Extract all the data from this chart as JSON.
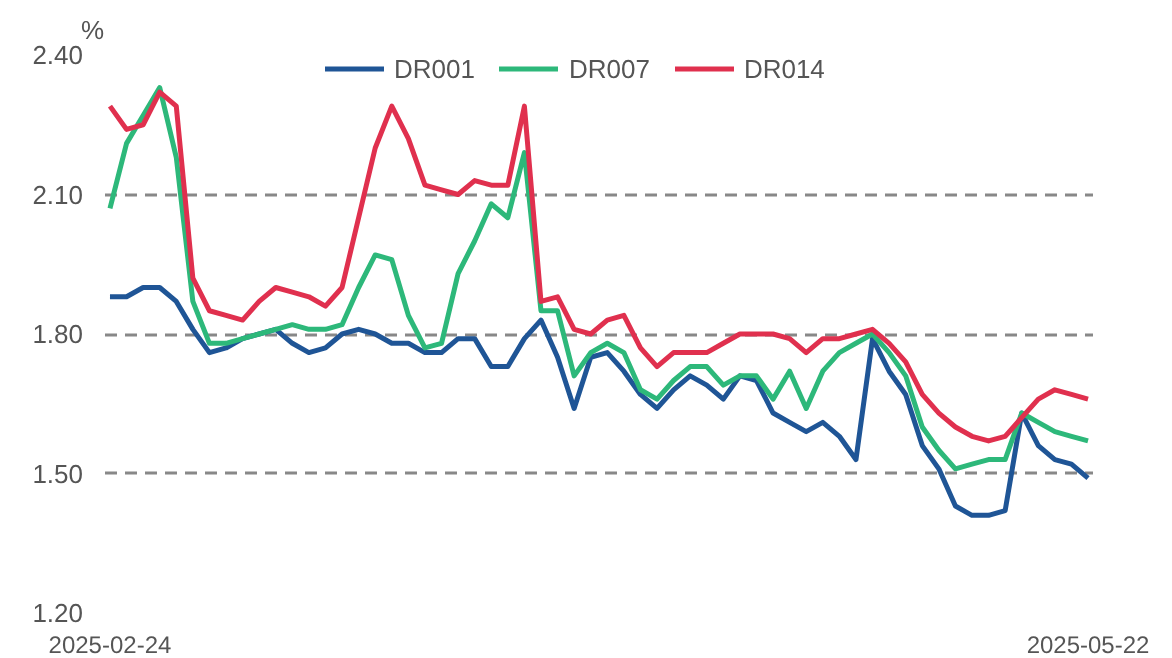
{
  "chart_data": {
    "type": "line",
    "ylabel": "%",
    "categories": [
      "2025-02-24",
      null,
      null,
      null,
      null,
      null,
      null,
      null,
      null,
      null,
      null,
      null,
      null,
      null,
      null,
      null,
      null,
      null,
      null,
      null,
      null,
      null,
      null,
      null,
      null,
      null,
      null,
      null,
      null,
      null,
      null,
      null,
      null,
      null,
      null,
      null,
      null,
      null,
      null,
      null,
      null,
      null,
      null,
      null,
      null,
      null,
      null,
      null,
      null,
      null,
      null,
      null,
      null,
      null,
      null,
      null,
      null,
      null,
      null,
      "2025-05-22"
    ],
    "series": [
      {
        "name": "DR001",
        "color": "#1f5596",
        "values": [
          1.88,
          1.88,
          1.9,
          1.9,
          1.87,
          1.81,
          1.76,
          1.77,
          1.79,
          1.8,
          1.81,
          1.78,
          1.76,
          1.77,
          1.8,
          1.81,
          1.8,
          1.78,
          1.78,
          1.76,
          1.76,
          1.79,
          1.79,
          1.73,
          1.73,
          1.79,
          1.83,
          1.75,
          1.64,
          1.75,
          1.76,
          1.72,
          1.67,
          1.64,
          1.68,
          1.71,
          1.69,
          1.66,
          1.71,
          1.7,
          1.63,
          1.61,
          1.59,
          1.61,
          1.58,
          1.53,
          1.79,
          1.72,
          1.67,
          1.56,
          1.51,
          1.43,
          1.41,
          1.41,
          1.42,
          1.63,
          1.56,
          1.53,
          1.52,
          1.49
        ]
      },
      {
        "name": "DR007",
        "color": "#2db87a",
        "values": [
          2.07,
          2.21,
          2.27,
          2.33,
          2.18,
          1.87,
          1.78,
          1.78,
          1.79,
          1.8,
          1.81,
          1.82,
          1.81,
          1.81,
          1.82,
          1.9,
          1.97,
          1.96,
          1.84,
          1.77,
          1.78,
          1.93,
          2.0,
          2.08,
          2.05,
          2.19,
          1.85,
          1.85,
          1.71,
          1.76,
          1.78,
          1.76,
          1.68,
          1.66,
          1.7,
          1.73,
          1.73,
          1.69,
          1.71,
          1.71,
          1.66,
          1.72,
          1.64,
          1.72,
          1.76,
          1.78,
          1.8,
          1.76,
          1.71,
          1.6,
          1.55,
          1.51,
          1.52,
          1.53,
          1.53,
          1.63,
          1.61,
          1.59,
          1.58,
          1.57
        ]
      },
      {
        "name": "DR014",
        "color": "#e0304e",
        "values": [
          2.29,
          2.24,
          2.25,
          2.32,
          2.29,
          1.92,
          1.85,
          1.84,
          1.83,
          1.87,
          1.9,
          1.89,
          1.88,
          1.86,
          1.9,
          2.05,
          2.2,
          2.29,
          2.22,
          2.12,
          2.11,
          2.1,
          2.13,
          2.12,
          2.12,
          2.29,
          1.87,
          1.88,
          1.81,
          1.8,
          1.83,
          1.84,
          1.77,
          1.73,
          1.76,
          1.76,
          1.76,
          1.78,
          1.8,
          1.8,
          1.8,
          1.79,
          1.76,
          1.79,
          1.79,
          1.8,
          1.81,
          1.78,
          1.74,
          1.67,
          1.63,
          1.6,
          1.58,
          1.57,
          1.58,
          1.62,
          1.66,
          1.68,
          1.67,
          1.66
        ]
      }
    ],
    "ylim": [
      1.2,
      2.4
    ],
    "yticks": [
      {
        "value": 1.2,
        "label": "1.20"
      },
      {
        "value": 1.5,
        "label": "1.50"
      },
      {
        "value": 1.8,
        "label": "1.80"
      },
      {
        "value": 2.1,
        "label": "2.10"
      },
      {
        "value": 2.4,
        "label": "2.40"
      }
    ],
    "grid": "y",
    "legend": "top"
  }
}
